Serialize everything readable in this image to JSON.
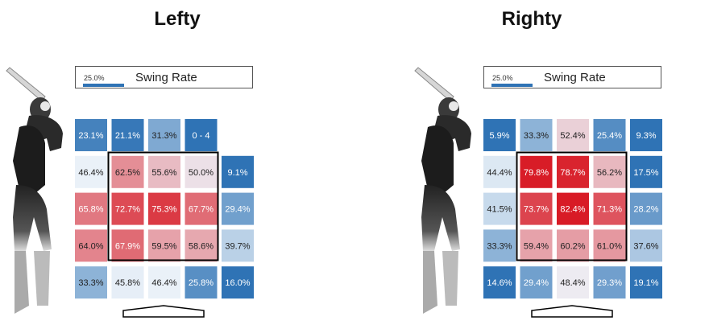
{
  "chart_data": [
    {
      "type": "heatmap",
      "title": "Lefty",
      "legend": {
        "value_label": "25.0%",
        "metric": "Swing Rate"
      },
      "rows": [
        [
          {
            "label": "23.1%",
            "value": 23.1
          },
          {
            "label": "21.1%",
            "value": 21.1
          },
          {
            "label": "31.3%",
            "value": 31.3
          },
          {
            "label": "0 - 4",
            "value": 0
          },
          null
        ],
        [
          {
            "label": "46.4%",
            "value": 46.4
          },
          {
            "label": "62.5%",
            "value": 62.5
          },
          {
            "label": "55.6%",
            "value": 55.6
          },
          {
            "label": "50.0%",
            "value": 50.0
          },
          {
            "label": "9.1%",
            "value": 9.1
          }
        ],
        [
          {
            "label": "65.8%",
            "value": 65.8
          },
          {
            "label": "72.7%",
            "value": 72.7
          },
          {
            "label": "75.3%",
            "value": 75.3
          },
          {
            "label": "67.7%",
            "value": 67.7
          },
          {
            "label": "29.4%",
            "value": 29.4
          }
        ],
        [
          {
            "label": "64.0%",
            "value": 64.0
          },
          {
            "label": "67.9%",
            "value": 67.9
          },
          {
            "label": "59.5%",
            "value": 59.5
          },
          {
            "label": "58.6%",
            "value": 58.6
          },
          {
            "label": "39.7%",
            "value": 39.7
          }
        ],
        [
          {
            "label": "33.3%",
            "value": 33.3
          },
          {
            "label": "45.8%",
            "value": 45.8
          },
          {
            "label": "46.4%",
            "value": 46.4
          },
          {
            "label": "25.8%",
            "value": 25.8
          },
          {
            "label": "16.0%",
            "value": 16.0
          }
        ]
      ]
    },
    {
      "type": "heatmap",
      "title": "Righty",
      "legend": {
        "value_label": "25.0%",
        "metric": "Swing Rate"
      },
      "rows": [
        [
          {
            "label": "5.9%",
            "value": 5.9
          },
          {
            "label": "33.3%",
            "value": 33.3
          },
          {
            "label": "52.4%",
            "value": 52.4
          },
          {
            "label": "25.4%",
            "value": 25.4
          },
          {
            "label": "9.3%",
            "value": 9.3
          }
        ],
        [
          {
            "label": "44.4%",
            "value": 44.4
          },
          {
            "label": "79.8%",
            "value": 79.8
          },
          {
            "label": "78.7%",
            "value": 78.7
          },
          {
            "label": "56.2%",
            "value": 56.2
          },
          {
            "label": "17.5%",
            "value": 17.5
          }
        ],
        [
          {
            "label": "41.5%",
            "value": 41.5
          },
          {
            "label": "73.7%",
            "value": 73.7
          },
          {
            "label": "82.4%",
            "value": 82.4
          },
          {
            "label": "71.3%",
            "value": 71.3
          },
          {
            "label": "28.2%",
            "value": 28.2
          }
        ],
        [
          {
            "label": "33.3%",
            "value": 33.3
          },
          {
            "label": "59.4%",
            "value": 59.4
          },
          {
            "label": "60.2%",
            "value": 60.2
          },
          {
            "label": "61.0%",
            "value": 61.0
          },
          {
            "label": "37.6%",
            "value": 37.6
          }
        ],
        [
          {
            "label": "14.6%",
            "value": 14.6
          },
          {
            "label": "29.4%",
            "value": 29.4
          },
          {
            "label": "48.4%",
            "value": 48.4
          },
          {
            "label": "29.3%",
            "value": 29.3
          },
          {
            "label": "19.1%",
            "value": 19.1
          }
        ]
      ]
    }
  ]
}
